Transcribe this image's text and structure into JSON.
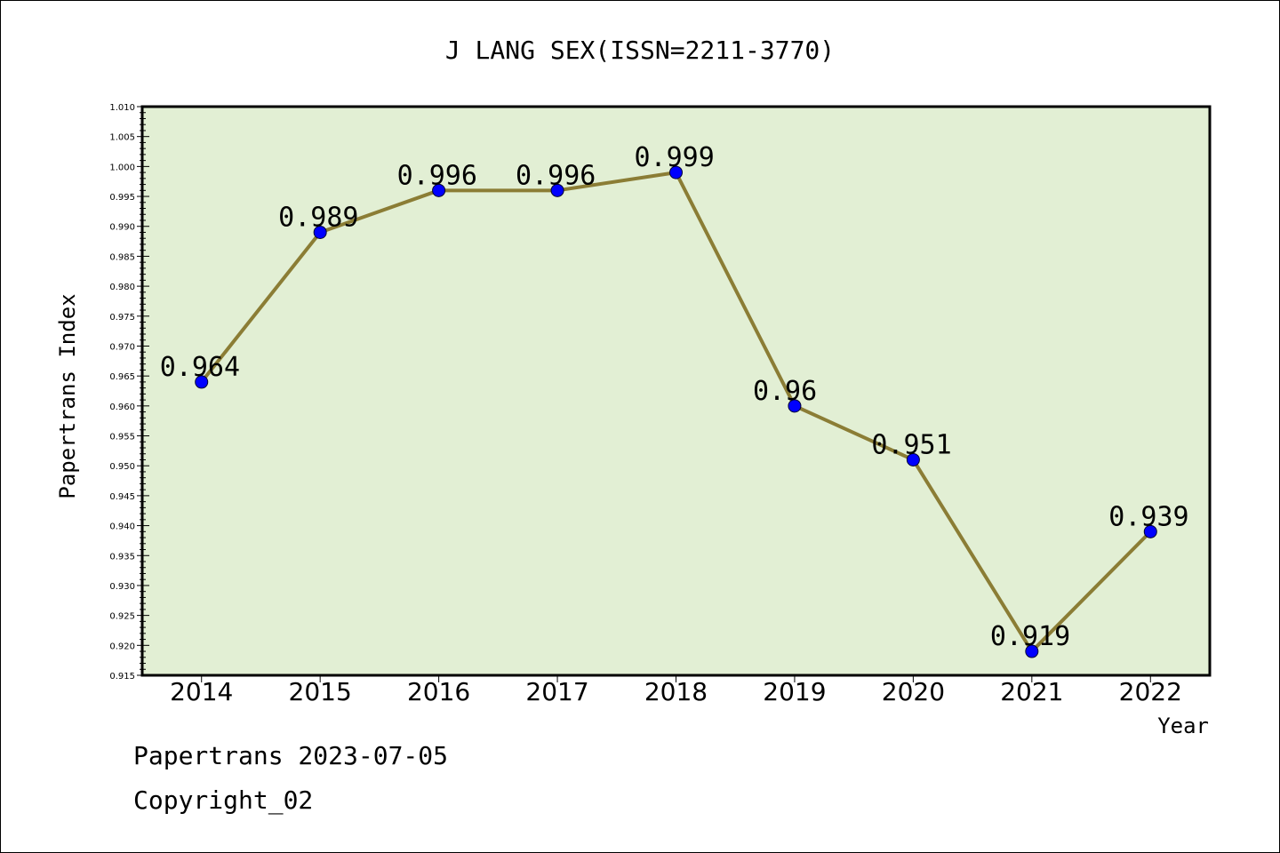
{
  "chart_data": {
    "type": "line",
    "title": "J LANG SEX(ISSN=2211-3770)",
    "xlabel": "Year",
    "ylabel": "Papertrans Index",
    "categories": [
      "2014",
      "2015",
      "2016",
      "2017",
      "2018",
      "2019",
      "2020",
      "2021",
      "2022"
    ],
    "values": [
      0.964,
      0.989,
      0.996,
      0.996,
      0.999,
      0.96,
      0.951,
      0.919,
      0.939
    ],
    "data_labels": [
      "0.964",
      "0.989",
      "0.996",
      "0.996",
      "0.999",
      "0.96",
      "0.951",
      "0.919",
      "0.939"
    ],
    "ylim": [
      0.915,
      1.01
    ],
    "yticks": [
      "0.915",
      "0.920",
      "0.925",
      "0.930",
      "0.935",
      "0.940",
      "0.945",
      "0.950",
      "0.955",
      "0.960",
      "0.965",
      "0.970",
      "0.975",
      "0.980",
      "0.985",
      "0.990",
      "0.995",
      "1.000",
      "1.005",
      "1.010"
    ],
    "grid": false,
    "colors": {
      "plot_background": "#e2efd4",
      "line": "#8b7d35",
      "marker": "#0000ff"
    }
  },
  "footer": {
    "line1": "Papertrans 2023-07-05",
    "line2": "Copyright_02"
  }
}
